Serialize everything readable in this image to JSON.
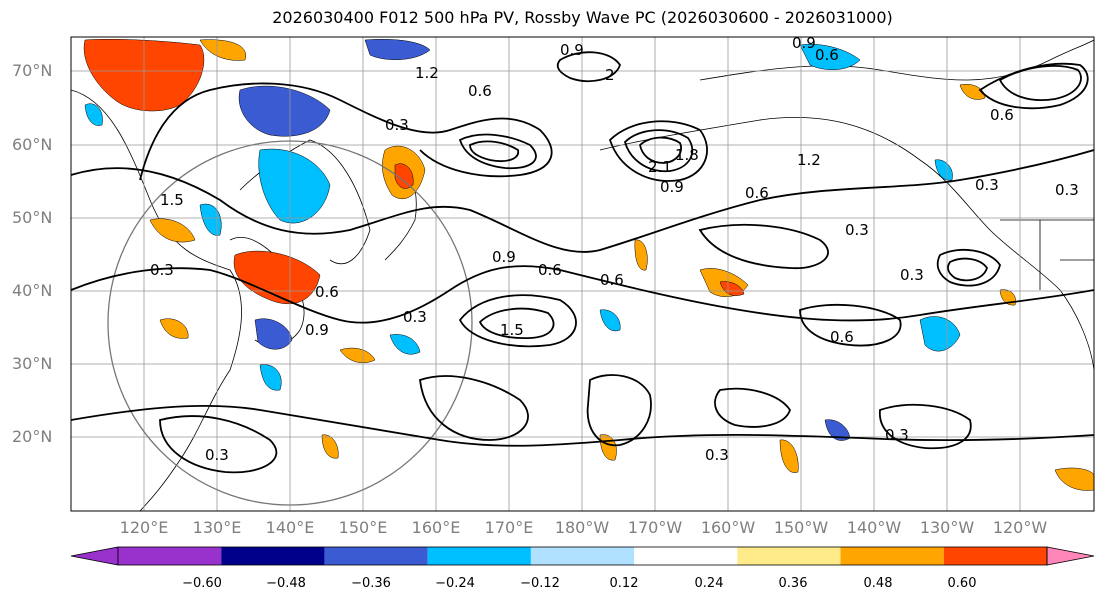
{
  "title": "2026030400 F012 500 hPa PV, Rossby Wave PC (2026030600 - 2026031000)",
  "lat_labels": [
    "70°N",
    "60°N",
    "50°N",
    "40°N",
    "30°N",
    "20°N"
  ],
  "lon_labels": [
    "120°E",
    "130°E",
    "140°E",
    "150°E",
    "160°E",
    "170°E",
    "180°W",
    "170°W",
    "160°W",
    "150°W",
    "140°W",
    "130°W",
    "120°W"
  ],
  "colorbar": {
    "ticks": [
      "−0.60",
      "−0.48",
      "−0.36",
      "−0.24",
      "−0.12",
      "0.12",
      "0.24",
      "0.36",
      "0.48",
      "0.60"
    ],
    "colors": [
      "#9932cc",
      "#00008b",
      "#3a5bd1",
      "#00bfff",
      "#b0e0ff",
      "#ffffff",
      "#ffeb8a",
      "#ffa500",
      "#ff4500",
      "#b22222",
      "#ff86b8"
    ]
  },
  "contour_labels": [
    "0.9",
    "1.2",
    "0.6",
    "0.3",
    "1.5",
    "1.8",
    "2.1",
    "0.9",
    "0.6",
    "0.3",
    "1.2",
    "0.6",
    "0.3",
    "0.9",
    "0.6",
    "0.3",
    "0.6",
    "0.9",
    "0.6",
    "0.3",
    "0.3",
    "0.3",
    "0.6",
    "0.3",
    "0.3",
    "0.9",
    "0.6",
    "0.3",
    "1.5",
    "2"
  ]
}
